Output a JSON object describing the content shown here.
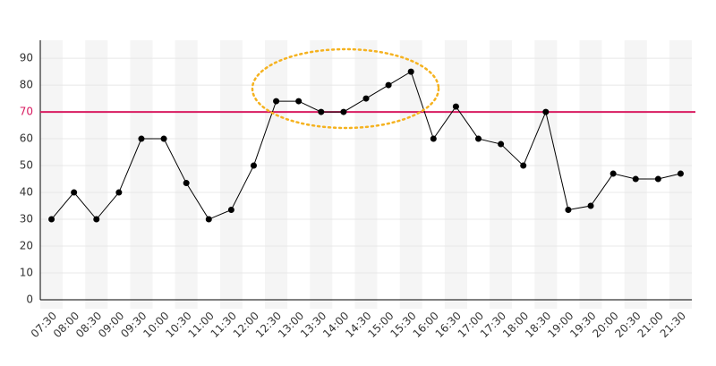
{
  "chart_data": {
    "type": "line",
    "categories": [
      "07:30",
      "08:00",
      "08:30",
      "09:00",
      "09:30",
      "10:00",
      "10:30",
      "11:00",
      "11:30",
      "12:00",
      "12:30",
      "13:00",
      "13:30",
      "14:00",
      "14:30",
      "15:00",
      "15:30",
      "16:00",
      "16:30",
      "17:00",
      "17:30",
      "18:00",
      "18:30",
      "19:00",
      "19:30",
      "20:00",
      "20:30",
      "21:00",
      "21:30"
    ],
    "values": [
      30,
      40,
      30,
      40,
      60,
      60,
      43.5,
      30,
      33.5,
      50,
      74,
      74,
      70,
      70,
      75,
      80,
      85,
      60,
      72,
      60,
      58,
      50,
      70,
      33.5,
      35,
      47,
      45,
      45,
      47
    ],
    "color": "#000000",
    "ylim": [
      0,
      96.7
    ],
    "yticks": [
      0,
      10,
      20,
      30,
      40,
      50,
      60,
      70,
      80,
      90
    ],
    "grid": true,
    "threshold": 70,
    "threshold_color": "#d81b60"
  }
}
